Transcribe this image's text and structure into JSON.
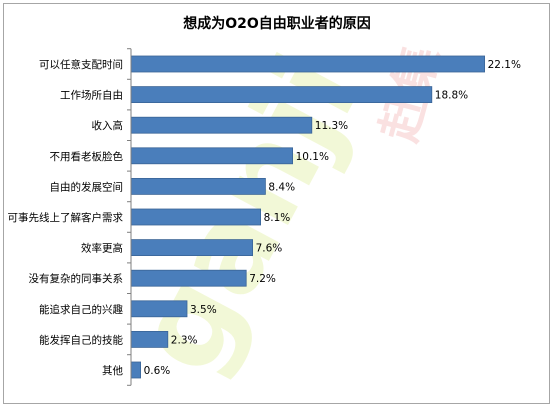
{
  "chart_data": {
    "type": "bar",
    "orientation": "horizontal",
    "title": "想成为O2O自由职业者的原因",
    "categories": [
      "可以任意支配时间",
      "工作场所自由",
      "收入高",
      "不用看老板脸色",
      "自由的发展空间",
      "可事先线上了解客户需求",
      "效率更高",
      "没有复杂的同事关系",
      "能追求自己的兴趣",
      "能发挥自己的技能",
      "其他"
    ],
    "values": [
      22.1,
      18.8,
      11.3,
      10.1,
      8.4,
      8.1,
      7.6,
      7.2,
      3.5,
      2.3,
      0.6
    ],
    "data_labels": [
      "22.1%",
      "18.8%",
      "11.3%",
      "10.1%",
      "8.4%",
      "8.1%",
      "7.6%",
      "7.2%",
      "3.5%",
      "2.3%",
      "0.6%"
    ],
    "value_unit": "%",
    "xlim": [
      0,
      24
    ],
    "grid": false,
    "legend": "none",
    "bar_color": "#4a7ebb",
    "bar_border_color": "#3a6496"
  },
  "watermark": {
    "latin": "ganji",
    "cjk": "赶集"
  }
}
